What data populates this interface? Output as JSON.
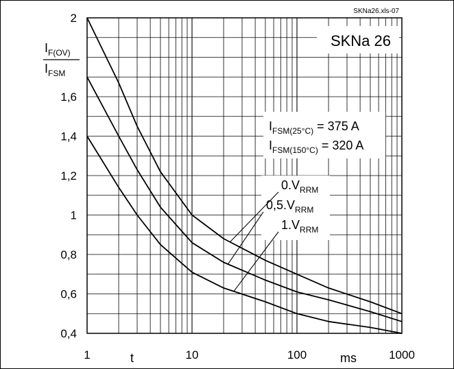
{
  "file_label": "SKNa26.xls-07",
  "device_label": "SKNa 26",
  "y_label": {
    "numerator_main": "I",
    "numerator_sub": "F(OV)",
    "denominator_main": "I",
    "denominator_sub": "FSM"
  },
  "x_label_left": "t",
  "x_label_unit": "ms",
  "info": [
    {
      "main": "I",
      "sub": "FSM(25°C)",
      "value": " = 375 A"
    },
    {
      "main": "I",
      "sub": "FSM(150°C)",
      "value": " = 320 A"
    }
  ],
  "colors": {
    "line": "#000000",
    "grid": "#000000",
    "background": "#ffffff"
  },
  "chart_data": {
    "type": "line",
    "x_scale": "log",
    "xlim": [
      1,
      1000
    ],
    "ylim": [
      0.4,
      2
    ],
    "x_ticks": [
      1,
      10,
      100,
      1000
    ],
    "x_tick_labels": [
      "1",
      "10",
      "100",
      "1000"
    ],
    "y_ticks": [
      0.4,
      0.6,
      0.8,
      1,
      1.2,
      1.4,
      1.6,
      2
    ],
    "y_tick_labels": [
      "0,4",
      "0,6",
      "0,8",
      "1",
      "1,2",
      "1,4",
      "1,6",
      "2"
    ],
    "grid": true,
    "series": [
      {
        "name": "0.VRRM",
        "label_main": "0.V",
        "label_sub": "RRM",
        "x": [
          1,
          2,
          3,
          5,
          10,
          20,
          50,
          100,
          200,
          500,
          1000
        ],
        "y": [
          2.0,
          1.67,
          1.45,
          1.22,
          1.0,
          0.88,
          0.77,
          0.7,
          0.63,
          0.56,
          0.5
        ]
      },
      {
        "name": "0,5.VRRM",
        "label_main": "0,5.V",
        "label_sub": "RRM",
        "x": [
          1,
          2,
          3,
          5,
          10,
          20,
          50,
          100,
          200,
          500,
          1000
        ],
        "y": [
          1.7,
          1.4,
          1.23,
          1.04,
          0.86,
          0.76,
          0.67,
          0.61,
          0.57,
          0.51,
          0.46
        ]
      },
      {
        "name": "1.VRRM",
        "label_main": "1.V",
        "label_sub": "RRM",
        "x": [
          1,
          2,
          3,
          5,
          10,
          20,
          50,
          100,
          200,
          500,
          1000
        ],
        "y": [
          1.4,
          1.14,
          1.0,
          0.85,
          0.71,
          0.63,
          0.56,
          0.5,
          0.46,
          0.43,
          0.4
        ]
      }
    ]
  }
}
